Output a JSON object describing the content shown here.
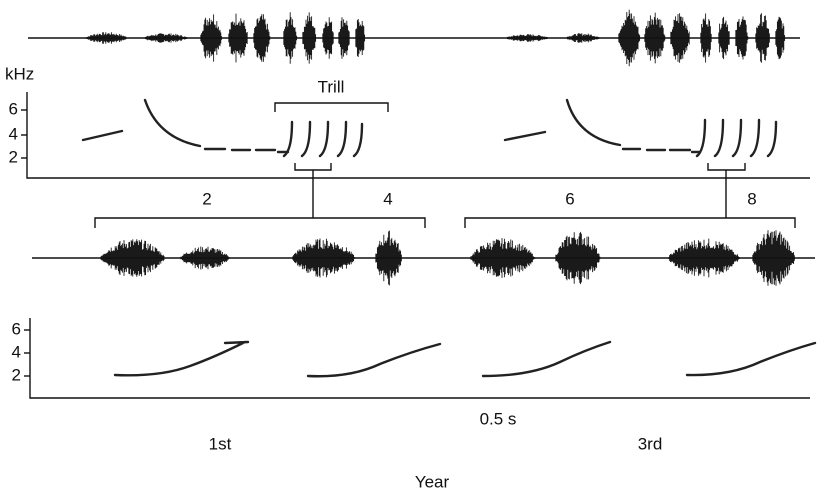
{
  "top_spectrogram": {
    "unit": "kHz",
    "yticks": [
      6,
      4,
      2
    ]
  },
  "trill_label": "Trill",
  "time_axis": {
    "ticks": [
      2,
      4,
      6,
      8
    ]
  },
  "bottom_spectrogram": {
    "yticks": [
      6,
      4,
      2
    ]
  },
  "scale_label": "0.5 s",
  "years": [
    "1st",
    "3rd"
  ],
  "year_label": "Year"
}
